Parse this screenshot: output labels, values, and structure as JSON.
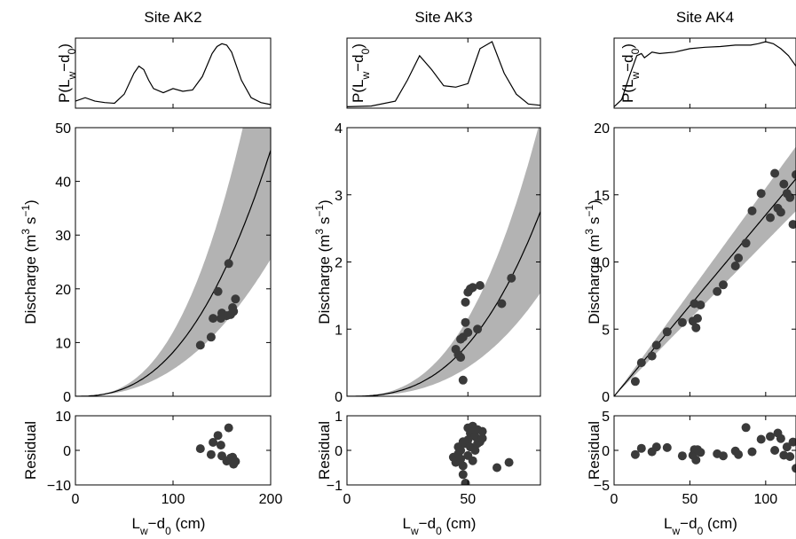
{
  "chart_data": [
    {
      "type": "scatter",
      "site": "Site AK2",
      "xlim": [
        0,
        200
      ],
      "xticks": [
        "0",
        "100",
        "200"
      ],
      "xlabel": "L_w−d_0 (cm)",
      "density": {
        "ylabel": "P(L_w−d_0)",
        "x": [
          0,
          10,
          20,
          30,
          40,
          50,
          60,
          65,
          70,
          75,
          80,
          90,
          100,
          110,
          120,
          130,
          140,
          145,
          150,
          155,
          160,
          165,
          170,
          180,
          190,
          200
        ],
        "y": [
          0.1,
          0.15,
          0.1,
          0.08,
          0.07,
          0.2,
          0.5,
          0.6,
          0.55,
          0.4,
          0.28,
          0.22,
          0.28,
          0.24,
          0.26,
          0.45,
          0.78,
          0.88,
          0.92,
          0.9,
          0.8,
          0.6,
          0.4,
          0.15,
          0.08,
          0.05
        ]
      },
      "discharge": {
        "ylabel": "Discharge (m^3 s^-1)",
        "ylim": [
          0,
          50
        ],
        "yticks": [
          "0",
          "10",
          "20",
          "30",
          "40",
          "50"
        ],
        "rating_curve": {
          "coef": 9e-05,
          "exp": 2.48
        },
        "band_low": {
          "coef": 0.0001,
          "exp": 2.35
        },
        "band_high": {
          "coef": 6e-05,
          "exp": 2.65
        },
        "points_x": [
          128,
          139,
          141,
          146,
          149,
          150,
          155,
          157,
          159,
          161,
          162,
          164
        ],
        "points_y": [
          9.5,
          11,
          14.5,
          19.5,
          14.5,
          15.5,
          15,
          24.7,
          15.2,
          16.5,
          15.8,
          18.1
        ]
      },
      "residual": {
        "ylabel": "Residual",
        "ylim": [
          -10,
          10
        ],
        "yticks": [
          "−10",
          "0",
          "10"
        ],
        "points_x": [
          128,
          139,
          141,
          146,
          149,
          150,
          155,
          157,
          159,
          161,
          162,
          164
        ],
        "points_y": [
          0.5,
          -1.2,
          2.3,
          4.3,
          1.5,
          -1.6,
          -3.1,
          6.5,
          -2.2,
          -2.0,
          -4.0,
          -3.2
        ]
      }
    },
    {
      "type": "scatter",
      "site": "Site AK3",
      "xlim": [
        0,
        80
      ],
      "xticks": [
        "0",
        "50"
      ],
      "xtick_values": [
        0,
        50
      ],
      "xlabel": "L_w−d_0 (cm)",
      "density": {
        "ylabel": "P(L_w−d_0)",
        "x": [
          0,
          10,
          20,
          25,
          30,
          35,
          40,
          45,
          50,
          52,
          55,
          60,
          65,
          70,
          75,
          80
        ],
        "y": [
          0.02,
          0.03,
          0.1,
          0.4,
          0.75,
          0.55,
          0.32,
          0.3,
          0.35,
          0.55,
          0.85,
          0.95,
          0.5,
          0.2,
          0.06,
          0.04
        ]
      },
      "discharge": {
        "ylabel": "Discharge (m^3 s^-1)",
        "ylim": [
          0,
          4
        ],
        "yticks": [
          "0",
          "1",
          "2",
          "3",
          "4"
        ],
        "rating_curve": {
          "coef": 2e-05,
          "exp": 2.7
        },
        "band_low": {
          "coef": 1.12e-05,
          "exp": 2.7
        },
        "band_high": {
          "coef": 3e-05,
          "exp": 2.7
        },
        "points_x": [
          45,
          46,
          47,
          47,
          48,
          48,
          49,
          49,
          50,
          50,
          51,
          52,
          54,
          55,
          64,
          68
        ],
        "points_y": [
          0.7,
          0.62,
          0.85,
          0.58,
          0.24,
          0.88,
          1.1,
          1.4,
          1.55,
          0.95,
          1.6,
          1.62,
          1.0,
          1.65,
          1.38,
          1.76
        ]
      },
      "residual": {
        "ylabel": "Residual",
        "ylim": [
          -1,
          1
        ],
        "yticks": [
          "−1",
          "0",
          "1"
        ],
        "points_x": [
          44,
          45,
          46,
          46,
          47,
          47,
          48,
          48,
          48,
          49,
          49,
          50,
          50,
          50,
          51,
          51,
          52,
          52,
          52,
          53,
          53,
          54,
          54,
          55,
          55,
          56,
          56,
          62,
          67
        ],
        "points_y": [
          -0.2,
          -0.35,
          0.1,
          -0.1,
          0.0,
          -0.25,
          0.25,
          -0.45,
          -0.7,
          0.2,
          -0.95,
          0.3,
          0.65,
          -0.15,
          0.1,
          0.5,
          0.7,
          0.55,
          -0.3,
          0.4,
          0.0,
          0.2,
          0.6,
          0.3,
          0.25,
          0.35,
          0.55,
          -0.5,
          -0.35
        ]
      }
    },
    {
      "type": "scatter",
      "site": "Site AK4",
      "xlim": [
        0,
        120
      ],
      "xticks": [
        "0",
        "50",
        "100"
      ],
      "xtick_values": [
        0,
        50,
        100
      ],
      "xlabel": "L_w−d_0 (cm)",
      "density": {
        "ylabel": "P(L_w−d_0)",
        "x": [
          0,
          5,
          10,
          15,
          18,
          20,
          25,
          30,
          40,
          50,
          60,
          70,
          80,
          90,
          95,
          100,
          105,
          110,
          115,
          120
        ],
        "y": [
          0.02,
          0.12,
          0.45,
          0.75,
          0.78,
          0.72,
          0.8,
          0.78,
          0.8,
          0.85,
          0.87,
          0.88,
          0.9,
          0.9,
          0.92,
          0.95,
          0.92,
          0.85,
          0.75,
          0.6
        ]
      },
      "discharge": {
        "ylabel": "Discharge (m^3 s^-1)",
        "ylim": [
          0,
          20
        ],
        "yticks": [
          "0",
          "5",
          "10",
          "15",
          "20"
        ],
        "rating_curve": {
          "coef": 0.135,
          "exp": 1.0
        },
        "band_low": {
          "coef": 0.115,
          "exp": 1.0
        },
        "band_high": {
          "coef": 0.155,
          "exp": 1.0
        },
        "points_x": [
          14,
          18,
          25,
          28,
          35,
          45,
          52,
          53,
          54,
          55,
          57,
          68,
          72,
          80,
          82,
          87,
          91,
          97,
          103,
          106,
          108,
          110,
          112,
          114,
          116,
          118,
          120
        ],
        "points_y": [
          1.1,
          2.5,
          3.0,
          3.8,
          4.8,
          5.5,
          5.6,
          6.9,
          5.1,
          5.8,
          6.8,
          7.8,
          8.3,
          9.7,
          10.3,
          11.4,
          13.8,
          15.1,
          13.3,
          16.6,
          14.0,
          13.7,
          15.8,
          15.1,
          14.8,
          12.8,
          16.5
        ]
      },
      "residual": {
        "ylabel": "Residual",
        "ylim": [
          -5,
          5
        ],
        "yticks": [
          "−5",
          "0",
          "5"
        ],
        "points_x": [
          14,
          18,
          25,
          28,
          35,
          45,
          52,
          53,
          54,
          55,
          57,
          68,
          72,
          80,
          82,
          87,
          91,
          97,
          103,
          106,
          108,
          110,
          112,
          114,
          116,
          118,
          120
        ],
        "points_y": [
          -0.6,
          0.3,
          -0.2,
          0.5,
          0.4,
          -0.8,
          -0.7,
          0.1,
          -1.4,
          0.1,
          -0.3,
          -0.5,
          -0.8,
          -0.1,
          -0.6,
          3.3,
          -0.2,
          1.6,
          2.0,
          0.0,
          2.5,
          1.7,
          -0.7,
          0.5,
          -0.9,
          1.2,
          -2.6
        ]
      }
    }
  ]
}
